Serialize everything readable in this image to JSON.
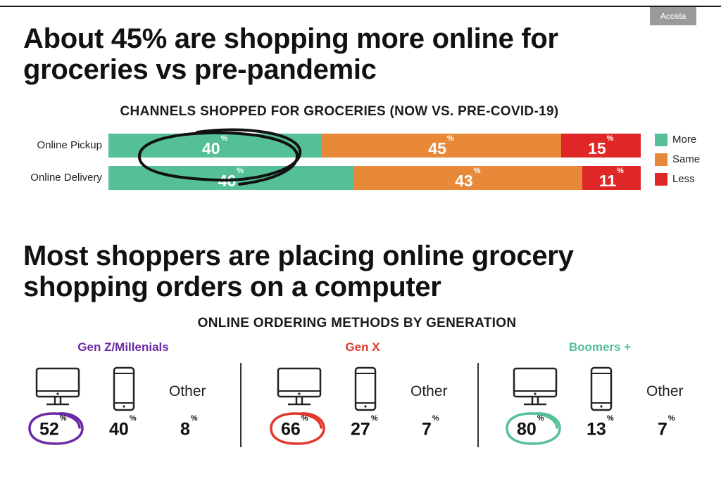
{
  "source_badge": "Acosta",
  "headline_1": "About 45% are shopping more online for groceries vs pre-pandemic",
  "subhead_1": "CHANNELS SHOPPED FOR GROCERIES (NOW VS. PRE-COVID-19)",
  "headline_2": "Most shoppers are placing online grocery shopping orders on a computer",
  "subhead_2": "ONLINE ORDERING METHODS BY GENERATION",
  "colors": {
    "more": "#55bf96",
    "same": "#e8893a",
    "less": "#e02727",
    "gen_z": "#6a2aa5",
    "gen_x": "#e2372b",
    "boomers": "#55bf96"
  },
  "chart_data": [
    {
      "type": "bar",
      "orientation": "horizontal",
      "stacked": true,
      "title": "CHANNELS SHOPPED FOR GROCERIES (NOW VS. PRE-COVID-19)",
      "categories": [
        "Online Pickup",
        "Online Delivery"
      ],
      "series": [
        {
          "name": "More",
          "values": [
            40,
            46
          ]
        },
        {
          "name": "Same",
          "values": [
            45,
            43
          ]
        },
        {
          "name": "Less",
          "values": [
            15,
            11
          ]
        }
      ],
      "value_suffix": "%",
      "legend": [
        "More",
        "Same",
        "Less"
      ],
      "legend_position": "right"
    },
    {
      "type": "table",
      "title": "ONLINE ORDERING METHODS BY GENERATION",
      "generations": [
        {
          "name": "Gen Z/Millenials",
          "computer": 52,
          "phone": 40,
          "other": 8
        },
        {
          "name": "Gen X",
          "computer": 66,
          "phone": 27,
          "other": 7
        },
        {
          "name": "Boomers +",
          "computer": 80,
          "phone": 13,
          "other": 7
        }
      ],
      "other_label": "Other",
      "value_suffix": "%",
      "icons": [
        "desktop-computer-icon",
        "smartphone-icon"
      ]
    }
  ]
}
